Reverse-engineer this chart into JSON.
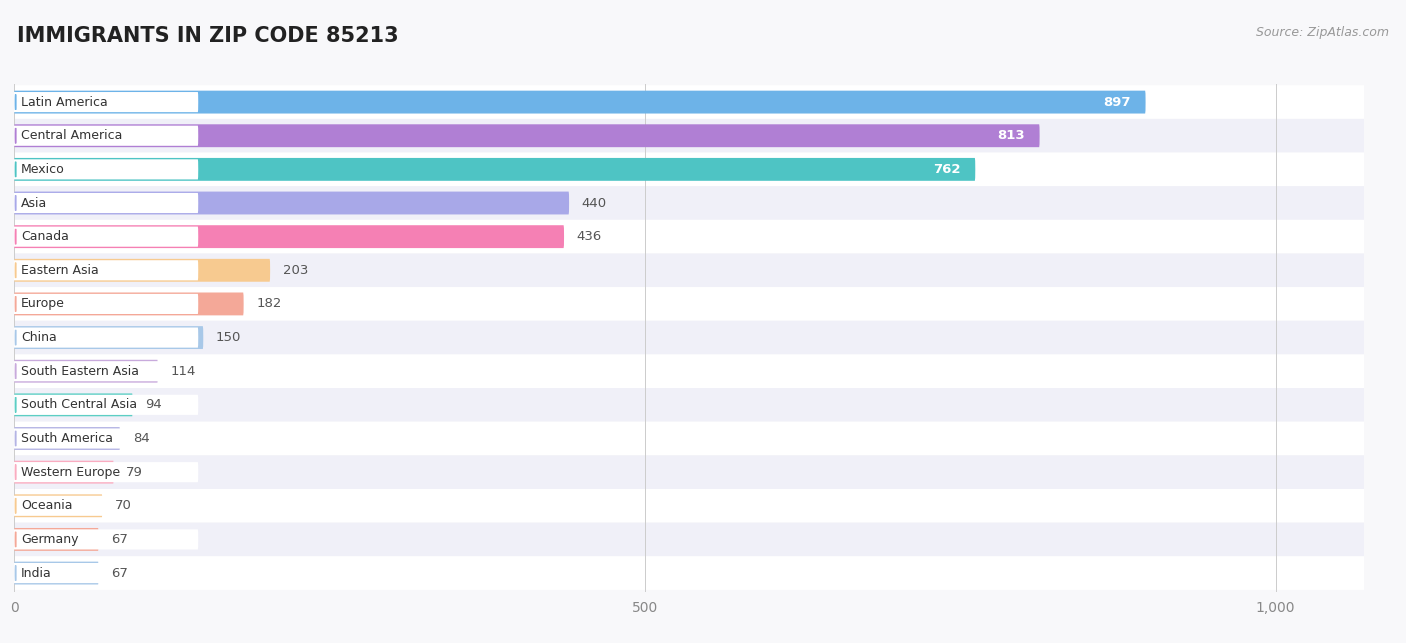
{
  "title": "IMMIGRANTS IN ZIP CODE 85213",
  "source": "Source: ZipAtlas.com",
  "categories": [
    "Latin America",
    "Central America",
    "Mexico",
    "Asia",
    "Canada",
    "Eastern Asia",
    "Europe",
    "China",
    "South Eastern Asia",
    "South Central Asia",
    "South America",
    "Western Europe",
    "Oceania",
    "Germany",
    "India"
  ],
  "values": [
    897,
    813,
    762,
    440,
    436,
    203,
    182,
    150,
    114,
    94,
    84,
    79,
    70,
    67,
    67
  ],
  "bar_colors": [
    "#6db3e8",
    "#b07fd4",
    "#4ec4c4",
    "#a8a8e8",
    "#f580b4",
    "#f7ca90",
    "#f4a898",
    "#a8c8e8",
    "#c8aadc",
    "#5ccec4",
    "#b4b4e4",
    "#faacc0",
    "#f7ca90",
    "#f4a898",
    "#a8c8e8"
  ],
  "row_colors": [
    "#ffffff",
    "#f0f0f8"
  ],
  "background_color": "#f8f8fa",
  "xlim_max": 1000,
  "xticks": [
    0,
    500,
    1000
  ],
  "val_inside_threshold": 500
}
